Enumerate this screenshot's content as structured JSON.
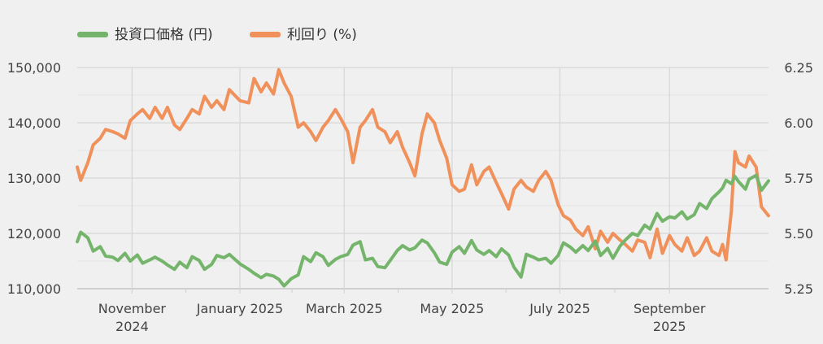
{
  "chart_data": {
    "type": "line",
    "title": "",
    "xlabel": "",
    "legend_position": "top-left",
    "grid": true,
    "x_range": [
      "2024-10-01",
      "2025-10-27"
    ],
    "y_left": {
      "ylim": [
        110000,
        150000
      ],
      "ticks": [
        "110,000",
        "120,000",
        "130,000",
        "140,000",
        "150,000"
      ]
    },
    "y_right": {
      "ylim": [
        5.25,
        6.25
      ],
      "ticks": [
        "5.25",
        "5.50",
        "5.75",
        "6.00",
        "6.25"
      ]
    },
    "x_ticks": [
      {
        "date": "2024-11-01",
        "label": [
          "November",
          "2024"
        ]
      },
      {
        "date": "2025-01-01",
        "label": [
          "January 2025"
        ]
      },
      {
        "date": "2025-03-01",
        "label": [
          "March 2025"
        ]
      },
      {
        "date": "2025-05-01",
        "label": [
          "May 2025"
        ]
      },
      {
        "date": "2025-07-01",
        "label": [
          "July 2025"
        ]
      },
      {
        "date": "2025-09-01",
        "label": [
          "September",
          "2025"
        ]
      }
    ],
    "series": [
      {
        "name": "投資口価格 (円)",
        "axis": "left",
        "color": "#74b56b",
        "points": [
          [
            "2024-10-01",
            118500
          ],
          [
            "2024-10-03",
            120200
          ],
          [
            "2024-10-07",
            119200
          ],
          [
            "2024-10-10",
            116800
          ],
          [
            "2024-10-14",
            117600
          ],
          [
            "2024-10-17",
            115900
          ],
          [
            "2024-10-21",
            115700
          ],
          [
            "2024-10-24",
            115100
          ],
          [
            "2024-10-28",
            116400
          ],
          [
            "2024-10-31",
            115000
          ],
          [
            "2024-11-04",
            116100
          ],
          [
            "2024-11-07",
            114600
          ],
          [
            "2024-11-11",
            115200
          ],
          [
            "2024-11-14",
            115700
          ],
          [
            "2024-11-18",
            115000
          ],
          [
            "2024-11-21",
            114300
          ],
          [
            "2024-11-25",
            113500
          ],
          [
            "2024-11-28",
            114800
          ],
          [
            "2024-12-02",
            113800
          ],
          [
            "2024-12-05",
            115800
          ],
          [
            "2024-12-09",
            115100
          ],
          [
            "2024-12-12",
            113500
          ],
          [
            "2024-12-16",
            114400
          ],
          [
            "2024-12-19",
            116000
          ],
          [
            "2024-12-23",
            115600
          ],
          [
            "2024-12-26",
            116200
          ],
          [
            "2025-01-01",
            114500
          ],
          [
            "2025-01-06",
            113500
          ],
          [
            "2025-01-09",
            112800
          ],
          [
            "2025-01-13",
            112000
          ],
          [
            "2025-01-16",
            112600
          ],
          [
            "2025-01-20",
            112300
          ],
          [
            "2025-01-23",
            111700
          ],
          [
            "2025-01-26",
            110500
          ],
          [
            "2025-01-30",
            111800
          ],
          [
            "2025-02-03",
            112500
          ],
          [
            "2025-02-06",
            115800
          ],
          [
            "2025-02-10",
            114900
          ],
          [
            "2025-02-13",
            116500
          ],
          [
            "2025-02-17",
            115800
          ],
          [
            "2025-02-20",
            114200
          ],
          [
            "2025-02-24",
            115300
          ],
          [
            "2025-02-27",
            115800
          ],
          [
            "2025-03-03",
            116200
          ],
          [
            "2025-03-06",
            117900
          ],
          [
            "2025-03-10",
            118500
          ],
          [
            "2025-03-13",
            115200
          ],
          [
            "2025-03-17",
            115500
          ],
          [
            "2025-03-20",
            114000
          ],
          [
            "2025-03-24",
            113800
          ],
          [
            "2025-03-27",
            115100
          ],
          [
            "2025-03-31",
            116900
          ],
          [
            "2025-04-03",
            117800
          ],
          [
            "2025-04-07",
            117000
          ],
          [
            "2025-04-10",
            117400
          ],
          [
            "2025-04-14",
            118800
          ],
          [
            "2025-04-17",
            118300
          ],
          [
            "2025-04-21",
            116500
          ],
          [
            "2025-04-24",
            114800
          ],
          [
            "2025-04-28",
            114400
          ],
          [
            "2025-05-01",
            116600
          ],
          [
            "2025-05-05",
            117600
          ],
          [
            "2025-05-08",
            116400
          ],
          [
            "2025-05-12",
            118700
          ],
          [
            "2025-05-15",
            117000
          ],
          [
            "2025-05-19",
            116200
          ],
          [
            "2025-05-22",
            116900
          ],
          [
            "2025-05-26",
            115800
          ],
          [
            "2025-05-29",
            117200
          ],
          [
            "2025-06-02",
            116100
          ],
          [
            "2025-06-05",
            113900
          ],
          [
            "2025-06-09",
            112100
          ],
          [
            "2025-06-12",
            116200
          ],
          [
            "2025-06-16",
            115700
          ],
          [
            "2025-06-19",
            115200
          ],
          [
            "2025-06-23",
            115500
          ],
          [
            "2025-06-26",
            114600
          ],
          [
            "2025-06-30",
            116000
          ],
          [
            "2025-07-03",
            118300
          ],
          [
            "2025-07-07",
            117500
          ],
          [
            "2025-07-10",
            116600
          ],
          [
            "2025-07-14",
            117800
          ],
          [
            "2025-07-17",
            116900
          ],
          [
            "2025-07-21",
            118600
          ],
          [
            "2025-07-24",
            116000
          ],
          [
            "2025-07-28",
            117300
          ],
          [
            "2025-07-31",
            115500
          ],
          [
            "2025-08-04",
            117700
          ],
          [
            "2025-08-07",
            118800
          ],
          [
            "2025-08-11",
            120000
          ],
          [
            "2025-08-14",
            119600
          ],
          [
            "2025-08-18",
            121500
          ],
          [
            "2025-08-21",
            120800
          ],
          [
            "2025-08-25",
            123600
          ],
          [
            "2025-08-28",
            122200
          ],
          [
            "2025-09-01",
            123000
          ],
          [
            "2025-09-04",
            122800
          ],
          [
            "2025-09-08",
            123900
          ],
          [
            "2025-09-11",
            122600
          ],
          [
            "2025-09-15",
            123400
          ],
          [
            "2025-09-18",
            125400
          ],
          [
            "2025-09-22",
            124500
          ],
          [
            "2025-09-25",
            126300
          ],
          [
            "2025-09-29",
            127500
          ],
          [
            "2025-10-01",
            128200
          ],
          [
            "2025-10-03",
            129600
          ],
          [
            "2025-10-06",
            129000
          ],
          [
            "2025-10-08",
            130300
          ],
          [
            "2025-10-10",
            129400
          ],
          [
            "2025-10-14",
            128000
          ],
          [
            "2025-10-16",
            129800
          ],
          [
            "2025-10-20",
            130500
          ],
          [
            "2025-10-23",
            127800
          ],
          [
            "2025-10-27",
            129500
          ]
        ]
      },
      {
        "name": "利回り (%)",
        "axis": "right",
        "color": "#f0905a",
        "points": [
          [
            "2024-10-01",
            5.8
          ],
          [
            "2024-10-03",
            5.74
          ],
          [
            "2024-10-07",
            5.82
          ],
          [
            "2024-10-10",
            5.9
          ],
          [
            "2024-10-14",
            5.93
          ],
          [
            "2024-10-17",
            5.97
          ],
          [
            "2024-10-21",
            5.96
          ],
          [
            "2024-10-24",
            5.95
          ],
          [
            "2024-10-28",
            5.93
          ],
          [
            "2024-10-31",
            6.01
          ],
          [
            "2024-11-04",
            6.04
          ],
          [
            "2024-11-07",
            6.06
          ],
          [
            "2024-11-11",
            6.02
          ],
          [
            "2024-11-14",
            6.07
          ],
          [
            "2024-11-18",
            6.02
          ],
          [
            "2024-11-21",
            6.07
          ],
          [
            "2024-11-25",
            5.99
          ],
          [
            "2024-11-28",
            5.97
          ],
          [
            "2024-12-02",
            6.02
          ],
          [
            "2024-12-05",
            6.06
          ],
          [
            "2024-12-09",
            6.04
          ],
          [
            "2024-12-12",
            6.12
          ],
          [
            "2024-12-16",
            6.07
          ],
          [
            "2024-12-19",
            6.1
          ],
          [
            "2024-12-23",
            6.06
          ],
          [
            "2024-12-26",
            6.15
          ],
          [
            "2025-01-01",
            6.1
          ],
          [
            "2025-01-06",
            6.09
          ],
          [
            "2025-01-09",
            6.2
          ],
          [
            "2025-01-13",
            6.14
          ],
          [
            "2025-01-16",
            6.18
          ],
          [
            "2025-01-20",
            6.13
          ],
          [
            "2025-01-23",
            6.24
          ],
          [
            "2025-01-26",
            6.18
          ],
          [
            "2025-01-30",
            6.12
          ],
          [
            "2025-02-03",
            5.98
          ],
          [
            "2025-02-06",
            6.0
          ],
          [
            "2025-02-10",
            5.96
          ],
          [
            "2025-02-13",
            5.92
          ],
          [
            "2025-02-17",
            5.98
          ],
          [
            "2025-02-20",
            6.01
          ],
          [
            "2025-02-24",
            6.06
          ],
          [
            "2025-02-27",
            6.02
          ],
          [
            "2025-03-03",
            5.96
          ],
          [
            "2025-03-06",
            5.82
          ],
          [
            "2025-03-10",
            5.98
          ],
          [
            "2025-03-13",
            6.01
          ],
          [
            "2025-03-17",
            6.06
          ],
          [
            "2025-03-20",
            5.98
          ],
          [
            "2025-03-24",
            5.96
          ],
          [
            "2025-03-27",
            5.91
          ],
          [
            "2025-03-31",
            5.96
          ],
          [
            "2025-04-03",
            5.89
          ],
          [
            "2025-04-07",
            5.82
          ],
          [
            "2025-04-10",
            5.76
          ],
          [
            "2025-04-14",
            5.95
          ],
          [
            "2025-04-17",
            6.04
          ],
          [
            "2025-04-21",
            6.0
          ],
          [
            "2025-04-24",
            5.92
          ],
          [
            "2025-04-28",
            5.84
          ],
          [
            "2025-05-01",
            5.72
          ],
          [
            "2025-05-05",
            5.69
          ],
          [
            "2025-05-08",
            5.7
          ],
          [
            "2025-05-12",
            5.81
          ],
          [
            "2025-05-15",
            5.72
          ],
          [
            "2025-05-19",
            5.78
          ],
          [
            "2025-05-22",
            5.8
          ],
          [
            "2025-05-26",
            5.73
          ],
          [
            "2025-05-29",
            5.68
          ],
          [
            "2025-06-02",
            5.61
          ],
          [
            "2025-06-05",
            5.7
          ],
          [
            "2025-06-09",
            5.74
          ],
          [
            "2025-06-12",
            5.71
          ],
          [
            "2025-06-16",
            5.69
          ],
          [
            "2025-06-19",
            5.74
          ],
          [
            "2025-06-23",
            5.78
          ],
          [
            "2025-06-26",
            5.74
          ],
          [
            "2025-06-30",
            5.63
          ],
          [
            "2025-07-03",
            5.58
          ],
          [
            "2025-07-07",
            5.56
          ],
          [
            "2025-07-10",
            5.52
          ],
          [
            "2025-07-14",
            5.49
          ],
          [
            "2025-07-17",
            5.53
          ],
          [
            "2025-07-21",
            5.43
          ],
          [
            "2025-07-24",
            5.51
          ],
          [
            "2025-07-28",
            5.46
          ],
          [
            "2025-07-31",
            5.5
          ],
          [
            "2025-08-04",
            5.47
          ],
          [
            "2025-08-07",
            5.45
          ],
          [
            "2025-08-11",
            5.42
          ],
          [
            "2025-08-14",
            5.47
          ],
          [
            "2025-08-18",
            5.46
          ],
          [
            "2025-08-21",
            5.39
          ],
          [
            "2025-08-25",
            5.52
          ],
          [
            "2025-08-28",
            5.41
          ],
          [
            "2025-09-01",
            5.49
          ],
          [
            "2025-09-04",
            5.45
          ],
          [
            "2025-09-08",
            5.42
          ],
          [
            "2025-09-11",
            5.48
          ],
          [
            "2025-09-15",
            5.4
          ],
          [
            "2025-09-18",
            5.42
          ],
          [
            "2025-09-22",
            5.48
          ],
          [
            "2025-09-25",
            5.42
          ],
          [
            "2025-09-29",
            5.4
          ],
          [
            "2025-10-01",
            5.45
          ],
          [
            "2025-10-03",
            5.38
          ],
          [
            "2025-10-06",
            5.6
          ],
          [
            "2025-10-08",
            5.87
          ],
          [
            "2025-10-10",
            5.82
          ],
          [
            "2025-10-14",
            5.8
          ],
          [
            "2025-10-16",
            5.85
          ],
          [
            "2025-10-20",
            5.8
          ],
          [
            "2025-10-23",
            5.62
          ],
          [
            "2025-10-27",
            5.58
          ]
        ]
      }
    ]
  }
}
